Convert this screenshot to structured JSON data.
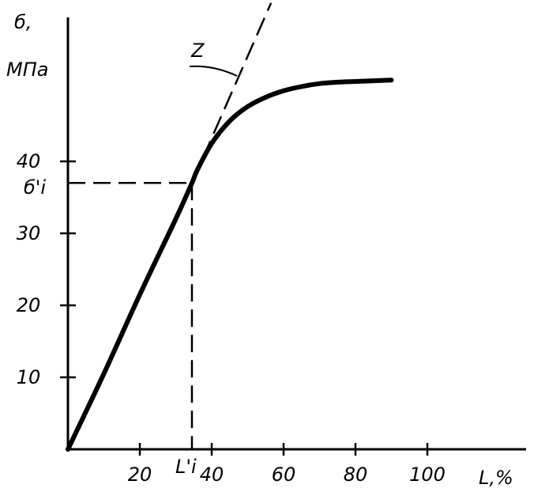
{
  "chart_data": {
    "type": "line",
    "ylabel_line1": "б,",
    "ylabel_line2": "МПа",
    "xlabel": "L,%",
    "xlim": [
      0,
      130
    ],
    "ylim": [
      0,
      62
    ],
    "x_ticks": [
      20,
      40,
      60,
      80,
      100
    ],
    "y_ticks": [
      10,
      20,
      30,
      40
    ],
    "grid": false,
    "series": [
      {
        "label": "",
        "style": "solid-thick",
        "x": [
          0,
          10,
          20,
          30,
          34.5,
          36,
          40,
          45,
          50,
          55,
          60,
          65,
          70,
          75,
          80,
          85,
          90
        ],
        "y": [
          0,
          10.5,
          21.5,
          32,
          37,
          38.8,
          42.5,
          45.6,
          47.6,
          48.9,
          49.8,
          50.4,
          50.8,
          51.0,
          51.1,
          51.2,
          51.3
        ]
      },
      {
        "label": "Z",
        "style": "dashed",
        "x": [
          34.5,
          56.5
        ],
        "y": [
          37,
          62
        ]
      }
    ],
    "markers": {
      "sigma_label": "б'i",
      "sigma_value": 37,
      "L_label": "L'i",
      "L_value": 34.5
    }
  }
}
